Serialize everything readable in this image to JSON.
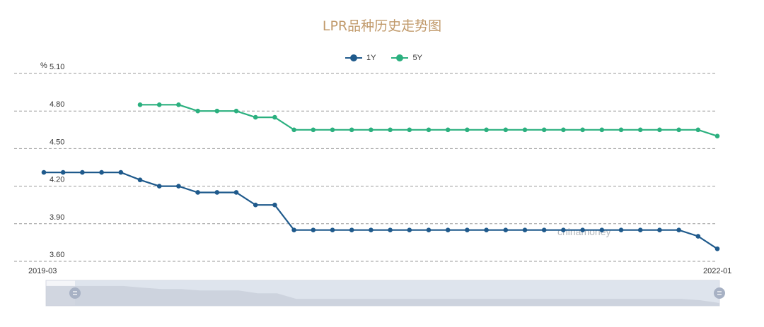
{
  "chart_data": {
    "type": "line",
    "title": "LPR品种历史走势图",
    "ylabel": "%",
    "y_ticks": [
      "5.10",
      "4.80",
      "4.50",
      "4.20",
      "3.90",
      "3.60"
    ],
    "ylim": [
      3.6,
      5.1
    ],
    "x_range_labels": [
      "2019-03",
      "2022-01"
    ],
    "grid": "horizontal-dashed",
    "legend_position": "top-center",
    "watermark": "chinamoney",
    "series": [
      {
        "name": "1Y",
        "color": "#1f5a8c",
        "values": [
          4.31,
          4.31,
          4.31,
          4.31,
          4.31,
          4.25,
          4.2,
          4.2,
          4.15,
          4.15,
          4.15,
          4.05,
          4.05,
          3.85,
          3.85,
          3.85,
          3.85,
          3.85,
          3.85,
          3.85,
          3.85,
          3.85,
          3.85,
          3.85,
          3.85,
          3.85,
          3.85,
          3.85,
          3.85,
          3.85,
          3.85,
          3.85,
          3.85,
          3.85,
          3.8,
          3.7
        ]
      },
      {
        "name": "5Y",
        "color": "#2bb07f",
        "values": [
          null,
          null,
          null,
          null,
          null,
          4.85,
          4.85,
          4.85,
          4.8,
          4.8,
          4.8,
          4.75,
          4.75,
          4.65,
          4.65,
          4.65,
          4.65,
          4.65,
          4.65,
          4.65,
          4.65,
          4.65,
          4.65,
          4.65,
          4.65,
          4.65,
          4.65,
          4.65,
          4.65,
          4.65,
          4.65,
          4.65,
          4.65,
          4.65,
          4.65,
          4.6
        ]
      }
    ]
  }
}
